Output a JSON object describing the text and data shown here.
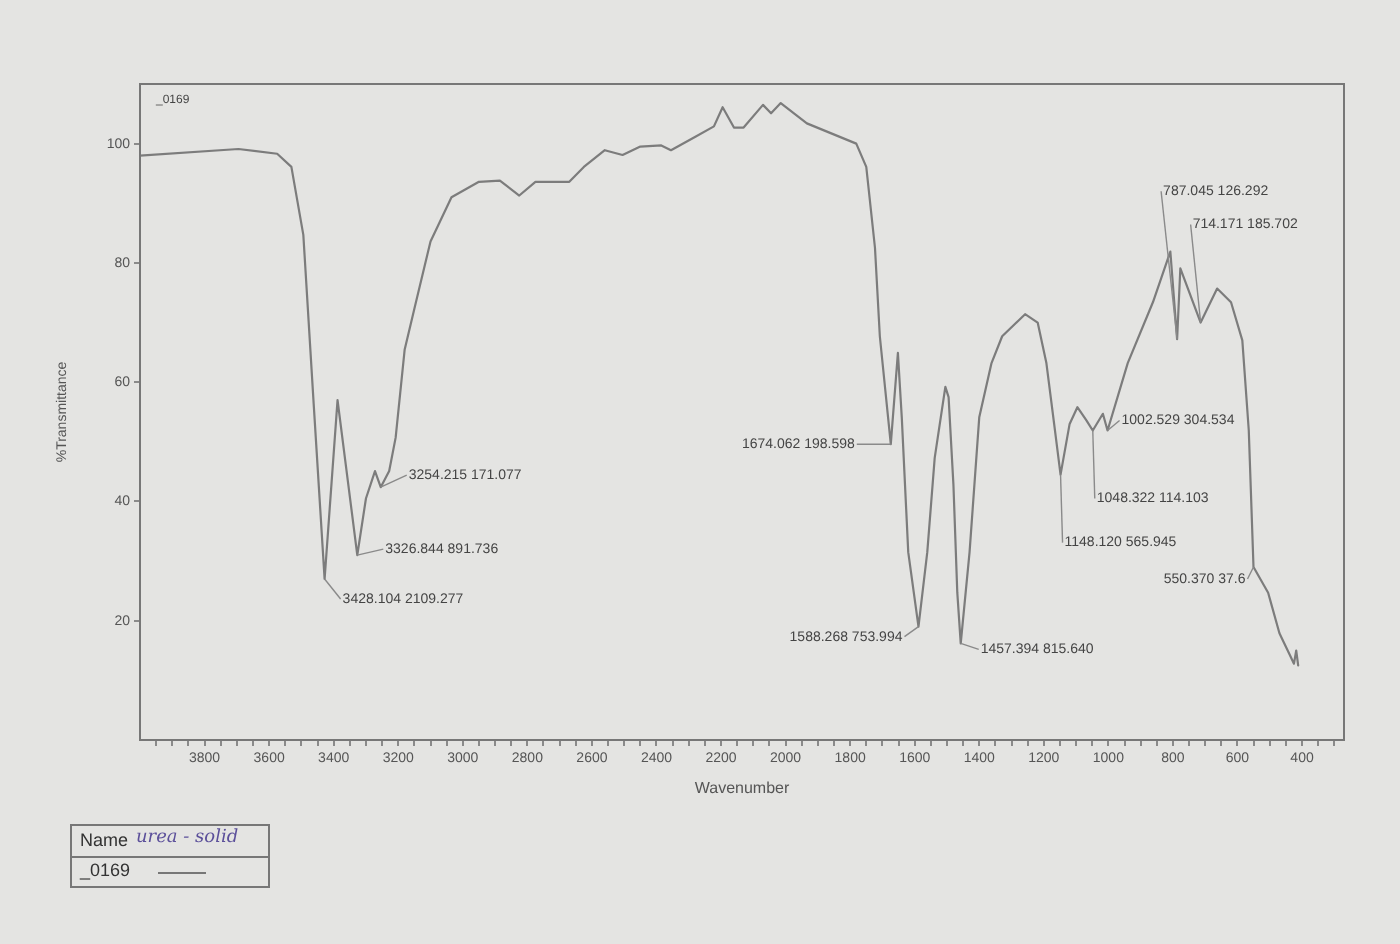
{
  "chart_data": {
    "type": "line",
    "xlabel": "Wavenumber",
    "ylabel": "%Transmittance",
    "color": "#7c7c7c",
    "x": [
      4000,
      3695,
      3575,
      3531,
      3494,
      3462,
      3428.104,
      3388,
      3326.844,
      3300,
      3272,
      3254.215,
      3228,
      3208,
      3180,
      3150,
      3100,
      3035,
      2950,
      2885,
      2825,
      2775,
      2670,
      2625,
      2560,
      2505,
      2450,
      2385,
      2355,
      2278,
      2222,
      2195,
      2160,
      2130,
      2070,
      2045,
      2015,
      1934,
      1781,
      1750,
      1723,
      1708,
      1674.062,
      1652,
      1640,
      1620,
      1588.268,
      1561,
      1538,
      1505,
      1495,
      1480,
      1468,
      1457.394,
      1430,
      1400,
      1362,
      1329,
      1258,
      1219,
      1192,
      1168,
      1148.12,
      1120,
      1096,
      1068,
      1048.322,
      1017,
      1002.529,
      940,
      862,
      808,
      787.045,
      777,
      714.171,
      663,
      620,
      585,
      565,
      550.37,
      505,
      470,
      440,
      425,
      418,
      412
    ],
    "values": [
      98.0,
      99.1,
      98.3,
      96.1,
      84.7,
      56.4,
      27,
      57,
      31,
      40.5,
      45.1,
      42.4,
      45.1,
      50.7,
      65.5,
      72.3,
      83.6,
      91.0,
      93.6,
      93.8,
      91.3,
      93.6,
      93.6,
      96.1,
      98.9,
      98.1,
      99.5,
      99.7,
      98.9,
      101.2,
      102.9,
      106.1,
      102.7,
      102.7,
      106.5,
      105.1,
      106.8,
      103.4,
      100.0,
      96.1,
      82.5,
      67.7,
      49.6,
      64.9,
      54.1,
      31.5,
      19,
      31.5,
      47.3,
      59.2,
      57.5,
      42.8,
      24.7,
      16.2,
      31.5,
      54.1,
      63.2,
      67.7,
      71.4,
      70.0,
      63.2,
      53.0,
      44.5,
      53.0,
      55.8,
      53.6,
      51.9,
      54.7,
      51.9,
      63.2,
      73.4,
      81.9,
      67.2,
      79.1,
      70.0,
      75.7,
      73.4,
      67.0,
      51.9,
      29,
      24.7,
      17.9,
      14.5,
      12.8,
      15.0,
      12.5
    ],
    "xlim": [
      4000,
      270
    ],
    "ylim": [
      0,
      110
    ],
    "xticks": [
      {
        "value": 3950,
        "label": null
      },
      {
        "value": 3900,
        "label": null
      },
      {
        "value": 3850,
        "label": null
      },
      3800,
      {
        "value": 3750,
        "label": null
      },
      {
        "value": 3700,
        "label": null
      },
      {
        "value": 3650,
        "label": null
      },
      3600,
      {
        "value": 3550,
        "label": null
      },
      {
        "value": 3500,
        "label": null
      },
      {
        "value": 3450,
        "label": null
      },
      3400,
      {
        "value": 3350,
        "label": null
      },
      {
        "value": 3300,
        "label": null
      },
      {
        "value": 3250,
        "label": null
      },
      3200,
      {
        "value": 3150,
        "label": null
      },
      {
        "value": 3100,
        "label": null
      },
      {
        "value": 3050,
        "label": null
      },
      3000,
      {
        "value": 2950,
        "label": null
      },
      {
        "value": 2900,
        "label": null
      },
      {
        "value": 2850,
        "label": null
      },
      2800,
      {
        "value": 2750,
        "label": null
      },
      {
        "value": 2700,
        "label": null
      },
      {
        "value": 2650,
        "label": null
      },
      2600,
      {
        "value": 2550,
        "label": null
      },
      {
        "value": 2500,
        "label": null
      },
      {
        "value": 2450,
        "label": null
      },
      2400,
      {
        "value": 2350,
        "label": null
      },
      {
        "value": 2300,
        "label": null
      },
      {
        "value": 2250,
        "label": null
      },
      2200,
      {
        "value": 2150,
        "label": null
      },
      {
        "value": 2100,
        "label": null
      },
      {
        "value": 2050,
        "label": null
      },
      2000,
      {
        "value": 1950,
        "label": null
      },
      {
        "value": 1900,
        "label": null
      },
      {
        "value": 1850,
        "label": null
      },
      1800,
      {
        "value": 1750,
        "label": null
      },
      {
        "value": 1700,
        "label": null
      },
      {
        "value": 1650,
        "label": null
      },
      1600,
      {
        "value": 1550,
        "label": null
      },
      {
        "value": 1500,
        "label": null
      },
      {
        "value": 1450,
        "label": null
      },
      1400,
      {
        "value": 1350,
        "label": null
      },
      {
        "value": 1300,
        "label": null
      },
      {
        "value": 1250,
        "label": null
      },
      1200,
      {
        "value": 1150,
        "label": null
      },
      {
        "value": 1100,
        "label": null
      },
      {
        "value": 1050,
        "label": null
      },
      1000,
      {
        "value": 950,
        "label": null
      },
      {
        "value": 900,
        "label": null
      },
      {
        "value": 850,
        "label": null
      },
      800,
      {
        "value": 750,
        "label": null
      },
      {
        "value": 700,
        "label": null
      },
      {
        "value": 650,
        "label": null
      },
      600,
      {
        "value": 550,
        "label": null
      },
      {
        "value": 500,
        "label": null
      },
      {
        "value": 450,
        "label": null
      },
      400,
      {
        "value": 350,
        "label": null
      },
      {
        "value": 300,
        "label": null
      }
    ],
    "yticks": [
      20,
      40,
      60,
      80,
      100
    ],
    "grid": false,
    "legend": false,
    "marker": "none",
    "annotations": [
      {
        "text": "3428.104 2109.277",
        "x": 3428.104,
        "y": 27
      },
      {
        "text": "3326.844 891.736",
        "x": 3326.844,
        "y": 31
      },
      {
        "text": "3254.215 171.077",
        "x": 3254.215,
        "y": 42.4
      },
      {
        "text": "1674.062 198.598",
        "x": 1674.062,
        "y": 49.6
      },
      {
        "text": "1588.268 753.994",
        "x": 1588.268,
        "y": 19
      },
      {
        "text": "1457.394 815.640",
        "x": 1457.394,
        "y": 16.2
      },
      {
        "text": "1148.120 565.945",
        "x": 1148.12,
        "y": 44.5
      },
      {
        "text": "1048.322 114.103",
        "x": 1048.322,
        "y": 51.9
      },
      {
        "text": "1002.529 304.534",
        "x": 1002.529,
        "y": 51.9
      },
      {
        "text": "787.045 126.292",
        "x": 787.045,
        "y": 67.2
      },
      {
        "text": "714.171 185.702",
        "x": 714.171,
        "y": 70.0
      },
      {
        "text": "550.370 37.6",
        "x": 550.37,
        "y": 29
      },
      "_0169",
      "Name",
      "urea - solid",
      "_0169"
    ]
  }
}
